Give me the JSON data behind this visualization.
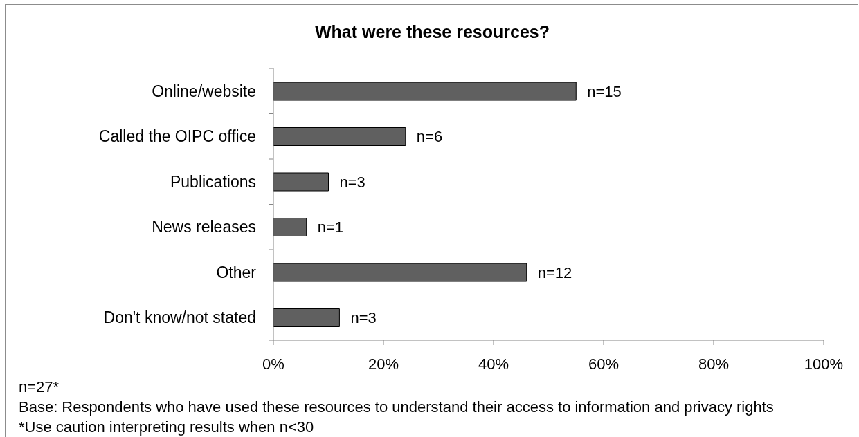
{
  "chart_data": {
    "type": "bar",
    "orientation": "horizontal",
    "title": "What were these resources?",
    "categories": [
      "Online/website",
      "Called the OIPC office",
      "Publications",
      "News releases",
      "Other",
      "Don't know/not stated"
    ],
    "values": [
      55,
      24,
      10,
      6,
      46,
      12
    ],
    "color": "#606060",
    "xlim": [
      0,
      100
    ],
    "xticks": [
      {
        "value": 0,
        "label": "0%"
      },
      {
        "value": 20,
        "label": "20%"
      },
      {
        "value": 40,
        "label": "40%"
      },
      {
        "value": 60,
        "label": "60%"
      },
      {
        "value": 80,
        "label": "80%"
      },
      {
        "value": 100,
        "label": "100%"
      }
    ],
    "annotations": [
      {
        "text": "n=15",
        "x": 55,
        "y": "Online/website"
      },
      {
        "text": "n=6",
        "x": 24,
        "y": "Called the OIPC office"
      },
      {
        "text": "n=3",
        "x": 10,
        "y": "Publications"
      },
      {
        "text": "n=1",
        "x": 6,
        "y": "News releases"
      },
      {
        "text": "n=12",
        "x": 46,
        "y": "Other"
      },
      {
        "text": "n=3",
        "x": 12,
        "y": "Don't know/not stated"
      },
      "n=27*",
      "Base: Respondents who have used these resources to understand their access to information and privacy rights",
      "*Use caution interpreting results when n<30"
    ]
  }
}
